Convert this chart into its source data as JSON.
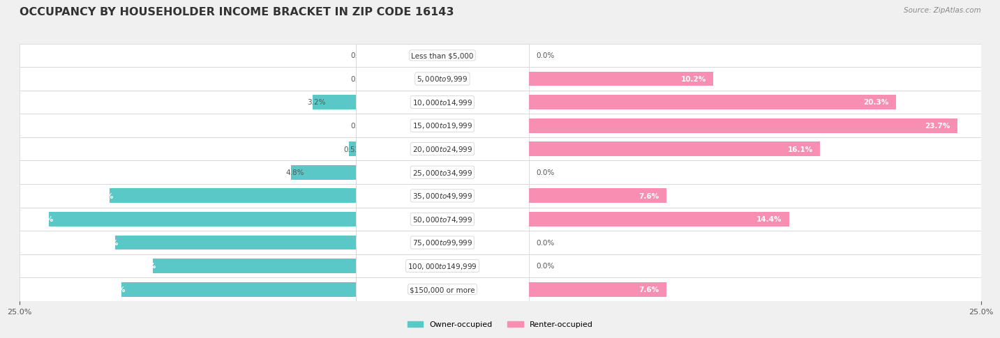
{
  "title": "OCCUPANCY BY HOUSEHOLDER INCOME BRACKET IN ZIP CODE 16143",
  "source": "Source: ZipAtlas.com",
  "categories": [
    "Less than $5,000",
    "$5,000 to $9,999",
    "$10,000 to $14,999",
    "$15,000 to $19,999",
    "$20,000 to $24,999",
    "$25,000 to $34,999",
    "$35,000 to $49,999",
    "$50,000 to $74,999",
    "$75,000 to $99,999",
    "$100,000 to $149,999",
    "$150,000 or more"
  ],
  "owner_values": [
    0.0,
    0.0,
    3.2,
    0.0,
    0.52,
    4.8,
    18.3,
    22.8,
    17.9,
    15.1,
    17.4
  ],
  "renter_values": [
    0.0,
    10.2,
    20.3,
    23.7,
    16.1,
    0.0,
    7.6,
    14.4,
    0.0,
    0.0,
    7.6
  ],
  "owner_color": "#5bc8c8",
  "renter_color": "#f78fb3",
  "bar_height": 0.62,
  "xlim": 25.0,
  "background_color": "#f0f0f0",
  "row_bg_light": "#f8f8f8",
  "row_bg_dark": "#ebebeb",
  "title_fontsize": 11.5,
  "cat_fontsize": 7.5,
  "val_fontsize": 7.5,
  "tick_fontsize": 8,
  "source_fontsize": 7.5,
  "legend_fontsize": 8
}
